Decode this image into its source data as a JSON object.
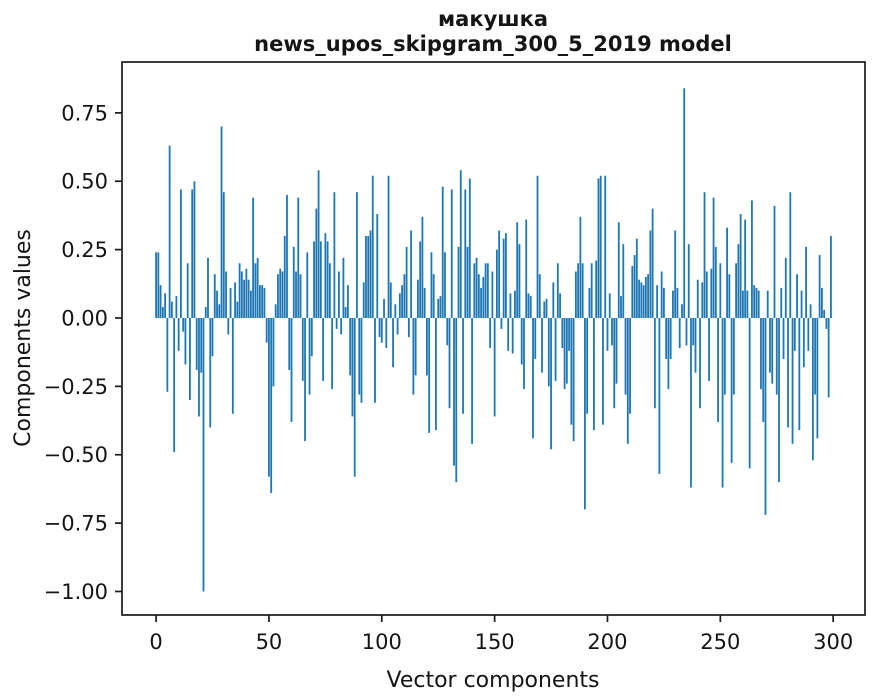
{
  "figure": {
    "title_line1": "макушка",
    "title_line2": "news_upos_skipgram_300_5_2019 model",
    "xlabel": "Vector components",
    "ylabel": "Components values"
  },
  "style": {
    "bar_color": "#1f77b4",
    "axis_color": "#1a1a1a",
    "background": "#ffffff"
  },
  "chart_data": {
    "type": "bar",
    "title": "макушка\nnews_upos_skipgram_300_5_2019 model",
    "xlabel": "Vector components",
    "ylabel": "Components values",
    "legend": null,
    "grid": false,
    "bar_color": "#1f77b4",
    "n_bars": 300,
    "xlim": [
      -15.1,
      314.1
    ],
    "ylim": [
      -1.086,
      0.936
    ],
    "xticks": {
      "values": [
        0,
        50,
        100,
        150,
        200,
        250,
        300
      ],
      "labels": [
        "0",
        "50",
        "100",
        "150",
        "200",
        "250",
        "300"
      ]
    },
    "yticks": {
      "values": [
        0.75,
        0.5,
        0.25,
        0.0,
        -0.25,
        -0.5,
        -0.75,
        -1.0
      ],
      "labels": [
        "0.75",
        "0.50",
        "0.25",
        "0.00",
        "−0.25",
        "−0.50",
        "−0.75",
        "−1.00"
      ]
    },
    "values": [
      0.24,
      0.24,
      0.12,
      0.04,
      0.09,
      -0.27,
      0.63,
      0.06,
      -0.49,
      0.08,
      -0.12,
      0.47,
      -0.05,
      -0.17,
      0.2,
      -0.3,
      0.47,
      0.5,
      -0.19,
      -0.36,
      -0.2,
      -1.0,
      0.04,
      0.22,
      -0.4,
      -0.14,
      0.16,
      0.1,
      0.05,
      0.7,
      0.46,
      0.17,
      -0.06,
      0.11,
      -0.35,
      0.13,
      0.06,
      0.2,
      0.17,
      0.14,
      0.18,
      0.14,
      0.1,
      0.44,
      0.2,
      0.22,
      0.12,
      0.12,
      0.11,
      -0.09,
      -0.58,
      -0.64,
      -0.25,
      0.05,
      0.16,
      0.18,
      0.17,
      0.3,
      0.45,
      -0.19,
      -0.38,
      0.26,
      0.17,
      0.44,
      0.16,
      -0.23,
      -0.45,
      0.24,
      -0.28,
      -0.14,
      0.28,
      0.4,
      0.54,
      0.28,
      -0.23,
      0.31,
      0.28,
      0.2,
      -0.26,
      0.46,
      -0.04,
      0.17,
      -0.06,
      0.22,
      0.04,
      0.12,
      -0.21,
      -0.36,
      -0.58,
      0.46,
      -0.28,
      -0.31,
      0.13,
      0.3,
      0.3,
      0.32,
      0.52,
      -0.31,
      0.38,
      -0.07,
      -0.09,
      0.07,
      -0.11,
      0.52,
      0.13,
      -0.18,
      0.05,
      -0.06,
      0.09,
      0.12,
      0.16,
      0.26,
      -0.07,
      0.32,
      -0.28,
      -0.21,
      0.14,
      0.28,
      0.37,
      0.11,
      -0.21,
      -0.42,
      0.24,
      0.16,
      -0.41,
      0.07,
      0.08,
      0.48,
      0.24,
      -0.1,
      -0.33,
      0.47,
      -0.54,
      -0.6,
      0.26,
      0.54,
      -0.35,
      0.47,
      0.26,
      0.51,
      -0.46,
      0.2,
      0.22,
      0.16,
      0.11,
      0.15,
      0.2,
      0.2,
      -0.11,
      0.17,
      -0.36,
      0.25,
      0.32,
      -0.04,
      0.29,
      0.31,
      -0.12,
      0.09,
      -0.13,
      0.1,
      0.35,
      0.27,
      -0.17,
      -0.26,
      0.36,
      0.09,
      0.08,
      -0.44,
      -0.15,
      0.52,
      0.16,
      -0.2,
      0.06,
      0.07,
      -0.25,
      -0.48,
      0.13,
      -0.23,
      0.2,
      0.09,
      -0.11,
      -0.26,
      -0.24,
      -0.12,
      -0.39,
      -0.45,
      0.17,
      0.2,
      0.37,
      0.2,
      -0.7,
      -0.35,
      0.11,
      0.2,
      -0.41,
      0.21,
      0.51,
      0.52,
      -0.39,
      0.52,
      -0.12,
      0.09,
      -0.1,
      -0.33,
      -0.24,
      0.35,
      0.08,
      0.27,
      -0.28,
      -0.46,
      -0.35,
      0.19,
      0.23,
      0.29,
      0.14,
      0.13,
      0.12,
      0.15,
      0.16,
      0.32,
      0.4,
      -0.33,
      0.12,
      -0.57,
      0.17,
      0.11,
      -0.15,
      -0.26,
      -0.15,
      0.1,
      0.32,
      0.11,
      -0.11,
      0.05,
      0.84,
      -0.1,
      0.27,
      -0.62,
      -0.1,
      -0.2,
      0.14,
      -0.33,
      0.13,
      0.46,
      0.17,
      -0.23,
      0.18,
      0.44,
      0.26,
      -0.38,
      0.2,
      -0.62,
      -0.28,
      0.33,
      0.16,
      -0.53,
      -0.28,
      0.2,
      0.27,
      0.38,
      0.1,
      0.36,
      0.1,
      -0.55,
      0.43,
      0.12,
      0.11,
      0.1,
      -0.26,
      -0.38,
      -0.72,
      0.1,
      -0.2,
      -0.24,
      0.41,
      -0.28,
      -0.6,
      0.11,
      -0.15,
      0.22,
      -0.4,
      0.46,
      -0.46,
      -0.12,
      0.16,
      -0.41,
      0.1,
      -0.18,
      0.26,
      -0.12,
      0.05,
      -0.52,
      -0.28,
      -0.44,
      0.23,
      0.11,
      0.03,
      -0.04,
      -0.29,
      0.3
    ]
  }
}
